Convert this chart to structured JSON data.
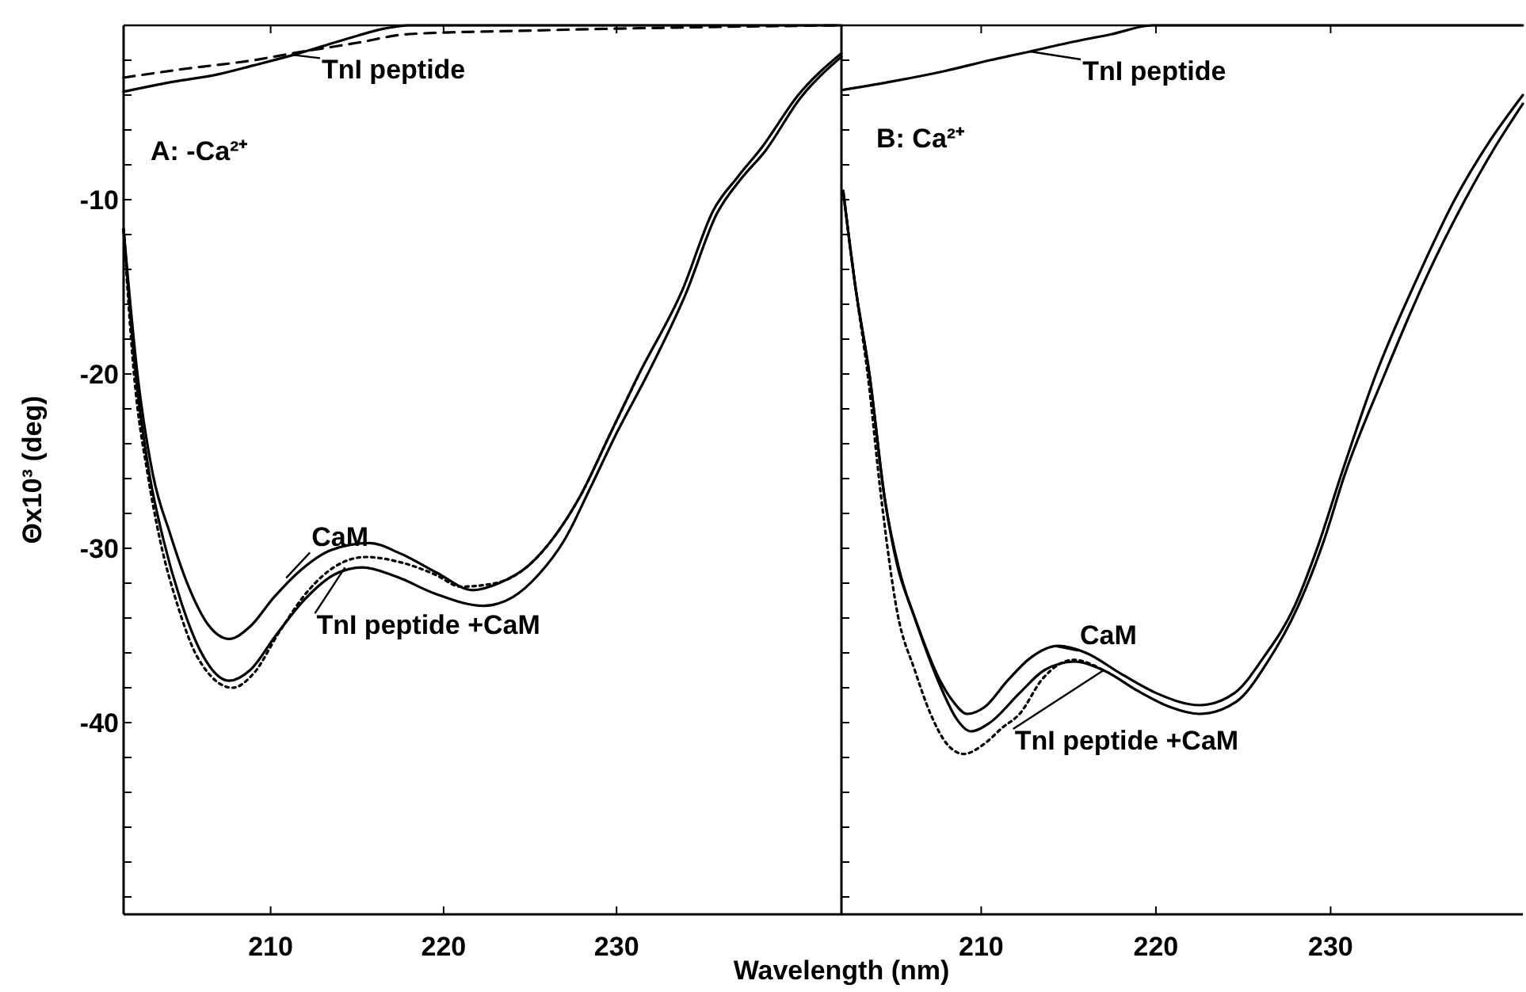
{
  "chart_data": [
    {
      "type": "line",
      "ylabel": "Θx10³ (deg)",
      "xlabel": "Wavelength (nm)",
      "xlim": [
        201.5,
        243
      ],
      "ylim": [
        -51,
        0
      ],
      "xticks": [
        210,
        220,
        230
      ],
      "yticks": [
        {
          "value": -50,
          "label": null
        },
        {
          "value": -48,
          "label": null
        },
        {
          "value": -46,
          "label": null
        },
        {
          "value": -44,
          "label": null
        },
        {
          "value": -42,
          "label": null
        },
        -40,
        {
          "value": -38,
          "label": null
        },
        {
          "value": -36,
          "label": null
        },
        {
          "value": -34,
          "label": null
        },
        {
          "value": -32,
          "label": null
        },
        -30,
        {
          "value": -28,
          "label": null
        },
        {
          "value": -26,
          "label": null
        },
        {
          "value": -24,
          "label": null
        },
        {
          "value": -22,
          "label": null
        },
        -20,
        {
          "value": -18,
          "label": null
        },
        {
          "value": -16,
          "label": null
        },
        {
          "value": -14,
          "label": null
        },
        {
          "value": -12,
          "label": null
        },
        -10,
        {
          "value": -8,
          "label": null
        },
        {
          "value": -6,
          "label": null
        },
        {
          "value": -4,
          "label": null
        },
        {
          "value": -2,
          "label": null
        }
      ],
      "series": [
        {
          "color": "#000000",
          "line_style": "solid",
          "x": [
            201.5,
            204,
            207,
            209,
            211.3,
            213,
            215,
            216.5,
            218,
            225,
            235,
            243
          ],
          "values": [
            -3.8,
            -3.3,
            -2.8,
            -2.3,
            -1.7,
            -1.2,
            -0.6,
            -0.2,
            0,
            0,
            0,
            0
          ]
        },
        {
          "color": "#000000",
          "line_style": "dashed",
          "x": [
            201.5,
            205,
            209,
            211.3,
            215,
            218,
            225,
            235,
            243
          ],
          "values": [
            -3.0,
            -2.5,
            -2.0,
            -1.6,
            -1.0,
            -0.5,
            -0.3,
            -0.1,
            0
          ]
        },
        {
          "color": "#000000",
          "line_style": "solid",
          "x": [
            201.5,
            202.3,
            203.2,
            204.2,
            205.3,
            206.4,
            207.6,
            208.8,
            210.2,
            211.8,
            213.5,
            215.7,
            217.5,
            219.6,
            221.7,
            223.2,
            224.9,
            226.5,
            227.9,
            229.6,
            231.3,
            233.8,
            235.6,
            237.0,
            238.4,
            240.5,
            243
          ],
          "values": [
            -11.7,
            -20,
            -25.8,
            -29.2,
            -32.3,
            -34.4,
            -35.2,
            -34.5,
            -32.8,
            -31.2,
            -30.1,
            -29.7,
            -30.3,
            -31.4,
            -32.4,
            -32.0,
            -31.0,
            -29.2,
            -27.0,
            -23.5,
            -20.0,
            -15.2,
            -10.6,
            -8.7,
            -7.0,
            -4.0,
            -1.6
          ]
        },
        {
          "color": "#000000",
          "line_style": "solid",
          "x": [
            201.5,
            202.2,
            203.0,
            203.8,
            204.8,
            206.0,
            207.6,
            208.8,
            210.3,
            212,
            213.7,
            215.3,
            217.2,
            219.5,
            222.3,
            224,
            225.5,
            227,
            228.5,
            230,
            231.8,
            234,
            235.8,
            237.2,
            238.6,
            240.6,
            243
          ],
          "values": [
            -11.7,
            -20,
            -25.8,
            -29.5,
            -33.0,
            -36.0,
            -37.6,
            -37.0,
            -35.0,
            -32.9,
            -31.5,
            -31.1,
            -31.6,
            -32.6,
            -33.3,
            -32.8,
            -31.5,
            -29.5,
            -26.5,
            -23.4,
            -20,
            -15.4,
            -10.8,
            -8.8,
            -7.2,
            -4.2,
            -1.8
          ]
        },
        {
          "color": "#000000",
          "line_style": "dotted",
          "x": [
            201.5,
            202.1,
            202.9,
            203.6,
            204.6,
            205.8,
            207.8,
            209,
            210.5,
            212.2,
            213.8,
            215.5,
            217.5,
            219.5,
            221,
            223,
            224.9,
            226.5,
            227.9,
            229.6,
            231.3
          ],
          "values": [
            -11.7,
            -20,
            -25.8,
            -29.5,
            -33.2,
            -36.3,
            -38.0,
            -37.2,
            -34.8,
            -32.4,
            -31,
            -30.5,
            -30.8,
            -31.5,
            -32.2,
            -32.0,
            -31.0,
            -29.2,
            -27.0,
            -23.5,
            -20.0
          ]
        }
      ],
      "annotations": [
        "A: -Ca²⁺",
        {
          "text": "TnI peptide",
          "x": 211.3,
          "y": -1.7
        },
        {
          "text": "CaM",
          "x": 210.9,
          "y": -31.7
        },
        {
          "text": "TnI peptide +CaM",
          "x": 214.3,
          "y": -31.1
        }
      ]
    },
    {
      "type": "line",
      "tick_labels": "x",
      "xlim": [
        202,
        241
      ],
      "ylim": [
        -51,
        0
      ],
      "xticks": [
        210,
        220,
        230
      ],
      "yticks": [
        {
          "value": -50,
          "label": null
        },
        {
          "value": -48,
          "label": null
        },
        {
          "value": -46,
          "label": null
        },
        {
          "value": -44,
          "label": null
        },
        {
          "value": -42,
          "label": null
        },
        {
          "value": -40,
          "label": null
        },
        {
          "value": -38,
          "label": null
        },
        {
          "value": -36,
          "label": null
        },
        {
          "value": -34,
          "label": null
        },
        {
          "value": -32,
          "label": null
        },
        {
          "value": -30,
          "label": null
        },
        {
          "value": -28,
          "label": null
        },
        {
          "value": -26,
          "label": null
        },
        {
          "value": -24,
          "label": null
        },
        {
          "value": -22,
          "label": null
        },
        {
          "value": -20,
          "label": null
        },
        {
          "value": -18,
          "label": null
        },
        {
          "value": -16,
          "label": null
        },
        {
          "value": -14,
          "label": null
        },
        {
          "value": -12,
          "label": null
        },
        {
          "value": -10,
          "label": null
        },
        {
          "value": -8,
          "label": null
        },
        {
          "value": -6,
          "label": null
        },
        {
          "value": -4,
          "label": null
        },
        {
          "value": -2,
          "label": null
        }
      ],
      "series": [
        {
          "color": "#000000",
          "line_style": "solid",
          "x": [
            202.1,
            205,
            208,
            210.5,
            212.8,
            215,
            217.5,
            219.8,
            225,
            235,
            241
          ],
          "values": [
            -3.7,
            -3.2,
            -2.6,
            -2.0,
            -1.5,
            -1.0,
            -0.5,
            0,
            0,
            0,
            0
          ]
        },
        {
          "color": "#000000",
          "line_style": "solid",
          "x": [
            202.1,
            202.8,
            203.6,
            204.5,
            205.2,
            206.1,
            207.6,
            208.4,
            209.2,
            210.2,
            211.5,
            212.8,
            214.4,
            216,
            218,
            220,
            222.5,
            224.5,
            226.2,
            227.9,
            229.3,
            230.6,
            232.6,
            235,
            237.1,
            239,
            241
          ],
          "values": [
            -9.5,
            -15,
            -20,
            -27.3,
            -31,
            -33.7,
            -37.5,
            -38.8,
            -39.5,
            -39.1,
            -37.6,
            -36.3,
            -35.6,
            -36.0,
            -37.2,
            -38.3,
            -39.0,
            -38.3,
            -36.2,
            -33.4,
            -29.8,
            -25.8,
            -20,
            -14.4,
            -10,
            -6.8,
            -4.0
          ]
        },
        {
          "color": "#000000",
          "line_style": "solid",
          "x": [
            202.1,
            202.8,
            203.6,
            204.5,
            205.3,
            206.3,
            207.7,
            208.6,
            209.4,
            210.5,
            212.2,
            213.6,
            215.3,
            217,
            219,
            220.8,
            222.5,
            224.6,
            226.4,
            228.1,
            229.6,
            230.8,
            233.1,
            235.5,
            237.7,
            239.4,
            241
          ],
          "values": [
            -9.5,
            -15,
            -20,
            -27.3,
            -31.2,
            -34.3,
            -38.0,
            -39.8,
            -40.5,
            -40.0,
            -38.3,
            -37.0,
            -36.5,
            -37.0,
            -38.2,
            -39.1,
            -39.5,
            -38.8,
            -36.5,
            -33.4,
            -29.6,
            -25.8,
            -20,
            -14.4,
            -10,
            -7.0,
            -4.5
          ]
        },
        {
          "color": "#000000",
          "line_style": "dotted",
          "x": [
            202.1,
            202.8,
            203.5,
            204.3,
            205.2,
            206.2,
            207.1,
            208.1,
            209.0,
            210.2,
            211.2,
            212.2,
            213.5,
            215.3,
            217
          ],
          "values": [
            -9.5,
            -15,
            -20,
            -27.3,
            -33.7,
            -37.0,
            -39.5,
            -41.3,
            -41.8,
            -41.2,
            -40.3,
            -39.5,
            -37.5,
            -36.4,
            -37.0
          ]
        }
      ],
      "annotations": [
        "B: Ca²⁺",
        {
          "text": "TnI peptide",
          "x": 212.8,
          "y": -1.5
        },
        {
          "text": "CaM",
          "x": 214.2,
          "y": -35.6
        },
        {
          "text": "TnI peptide +CaM",
          "x": 217,
          "y": -37.0
        }
      ]
    }
  ]
}
